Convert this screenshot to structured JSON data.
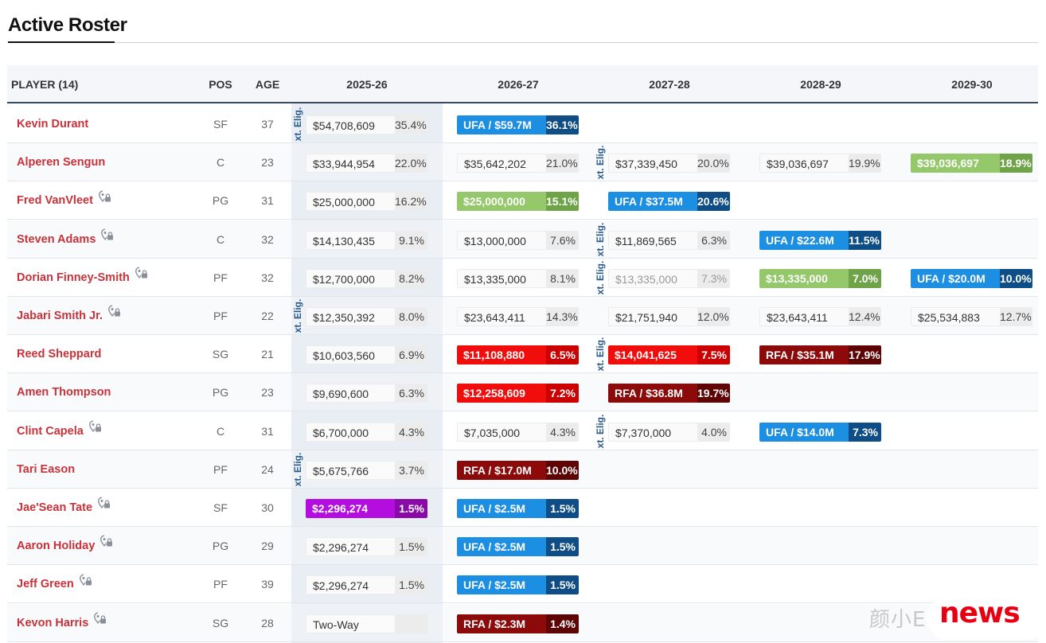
{
  "title": "Active Roster",
  "headers": {
    "player": "PLAYER (14)",
    "pos": "POS",
    "age": "AGE",
    "seasons": [
      "2025-26",
      "2026-27",
      "2027-28",
      "2028-29",
      "2029-30"
    ]
  },
  "ext_label": "xt. Elig.",
  "colors": {
    "player_name": "#c8323a",
    "ufa": "#1d8fe2",
    "player_option": "#94c86a",
    "team_option": "#f20d0d",
    "rfa": "#8c0a0a",
    "non_guaranteed": "#b40ddf"
  },
  "rows": [
    {
      "name": "Kevin Durant",
      "lock": false,
      "pos": "SF",
      "age": "37",
      "cells": [
        {
          "amount": "$54,708,609",
          "pct": "35.4%",
          "style": "plain"
        },
        {
          "amount": "UFA / $59.7M",
          "pct": "36.1%",
          "style": "blue"
        },
        null,
        null,
        null
      ]
    },
    {
      "name": "Alperen Sengun",
      "lock": false,
      "pos": "C",
      "age": "23",
      "cells": [
        {
          "amount": "$33,944,954",
          "pct": "22.0%",
          "style": "plain"
        },
        {
          "amount": "$35,642,202",
          "pct": "21.0%",
          "style": "plain"
        },
        {
          "amount": "$37,339,450",
          "pct": "20.0%",
          "style": "plain"
        },
        {
          "amount": "$39,036,697",
          "pct": "19.9%",
          "style": "plain"
        },
        {
          "amount": "$39,036,697",
          "pct": "18.9%",
          "style": "green"
        }
      ]
    },
    {
      "name": "Fred VanVleet",
      "lock": true,
      "pos": "PG",
      "age": "31",
      "cells": [
        {
          "amount": "$25,000,000",
          "pct": "16.2%",
          "style": "plain"
        },
        {
          "amount": "$25,000,000",
          "pct": "15.1%",
          "style": "green"
        },
        {
          "amount": "UFA / $37.5M",
          "pct": "20.6%",
          "style": "blue"
        },
        null,
        null
      ]
    },
    {
      "name": "Steven Adams",
      "lock": true,
      "pos": "C",
      "age": "32",
      "cells": [
        {
          "amount": "$14,130,435",
          "pct": "9.1%",
          "style": "plain"
        },
        {
          "amount": "$13,000,000",
          "pct": "7.6%",
          "style": "plain"
        },
        {
          "amount": "$11,869,565",
          "pct": "6.3%",
          "style": "plain"
        },
        {
          "amount": "UFA / $22.6M",
          "pct": "11.5%",
          "style": "blue"
        },
        null
      ]
    },
    {
      "name": "Dorian Finney-Smith",
      "lock": true,
      "pos": "PF",
      "age": "32",
      "cells": [
        {
          "amount": "$12,700,000",
          "pct": "8.2%",
          "style": "plain"
        },
        {
          "amount": "$13,335,000",
          "pct": "8.1%",
          "style": "plain"
        },
        {
          "amount": "$13,335,000",
          "pct": "7.3%",
          "style": "faded"
        },
        {
          "amount": "$13,335,000",
          "pct": "7.0%",
          "style": "green"
        },
        {
          "amount": "UFA / $20.0M",
          "pct": "10.0%",
          "style": "blue"
        }
      ]
    },
    {
      "name": "Jabari Smith Jr.",
      "lock": true,
      "pos": "PF",
      "age": "22",
      "cells": [
        {
          "amount": "$12,350,392",
          "pct": "8.0%",
          "style": "plain"
        },
        {
          "amount": "$23,643,411",
          "pct": "14.3%",
          "style": "plain"
        },
        {
          "amount": "$21,751,940",
          "pct": "12.0%",
          "style": "plain"
        },
        {
          "amount": "$23,643,411",
          "pct": "12.4%",
          "style": "plain"
        },
        {
          "amount": "$25,534,883",
          "pct": "12.7%",
          "style": "plain"
        }
      ]
    },
    {
      "name": "Reed Sheppard",
      "lock": false,
      "pos": "SG",
      "age": "21",
      "cells": [
        {
          "amount": "$10,603,560",
          "pct": "6.9%",
          "style": "plain"
        },
        {
          "amount": "$11,108,880",
          "pct": "6.5%",
          "style": "red"
        },
        {
          "amount": "$14,041,625",
          "pct": "7.5%",
          "style": "red"
        },
        {
          "amount": "RFA / $35.1M",
          "pct": "17.9%",
          "style": "darkred"
        },
        null
      ]
    },
    {
      "name": "Amen Thompson",
      "lock": false,
      "pos": "PG",
      "age": "23",
      "cells": [
        {
          "amount": "$9,690,600",
          "pct": "6.3%",
          "style": "plain"
        },
        {
          "amount": "$12,258,609",
          "pct": "7.2%",
          "style": "red"
        },
        {
          "amount": "RFA / $36.8M",
          "pct": "19.7%",
          "style": "darkred"
        },
        null,
        null
      ]
    },
    {
      "name": "Clint Capela",
      "lock": true,
      "pos": "C",
      "age": "31",
      "cells": [
        {
          "amount": "$6,700,000",
          "pct": "4.3%",
          "style": "plain"
        },
        {
          "amount": "$7,035,000",
          "pct": "4.3%",
          "style": "plain"
        },
        {
          "amount": "$7,370,000",
          "pct": "4.0%",
          "style": "plain"
        },
        {
          "amount": "UFA / $14.0M",
          "pct": "7.3%",
          "style": "blue"
        },
        null
      ]
    },
    {
      "name": "Tari Eason",
      "lock": false,
      "pos": "PF",
      "age": "24",
      "cells": [
        {
          "amount": "$5,675,766",
          "pct": "3.7%",
          "style": "plain"
        },
        {
          "amount": "RFA / $17.0M",
          "pct": "10.0%",
          "style": "darkred"
        },
        null,
        null,
        null
      ]
    },
    {
      "name": "Jae'Sean Tate",
      "lock": true,
      "pos": "SF",
      "age": "30",
      "cells": [
        {
          "amount": "$2,296,274",
          "pct": "1.5%",
          "style": "purple"
        },
        {
          "amount": "UFA / $2.5M",
          "pct": "1.5%",
          "style": "blue"
        },
        null,
        null,
        null
      ]
    },
    {
      "name": "Aaron Holiday",
      "lock": true,
      "pos": "PG",
      "age": "29",
      "cells": [
        {
          "amount": "$2,296,274",
          "pct": "1.5%",
          "style": "plain"
        },
        {
          "amount": "UFA / $2.5M",
          "pct": "1.5%",
          "style": "blue"
        },
        null,
        null,
        null
      ]
    },
    {
      "name": "Jeff Green",
      "lock": true,
      "pos": "PF",
      "age": "39",
      "cells": [
        {
          "amount": "$2,296,274",
          "pct": "1.5%",
          "style": "plain"
        },
        {
          "amount": "UFA / $2.5M",
          "pct": "1.5%",
          "style": "blue"
        },
        null,
        null,
        null
      ]
    },
    {
      "name": "Kevon Harris",
      "lock": true,
      "pos": "SG",
      "age": "28",
      "cells": [
        {
          "amount": "Two-Way",
          "pct": "",
          "style": "plain"
        },
        {
          "amount": "RFA / $2.3M",
          "pct": "1.4%",
          "style": "darkred"
        },
        null,
        null,
        null
      ]
    }
  ],
  "ext_markers": [
    {
      "row": 0,
      "season": 0
    },
    {
      "row": 1,
      "season": 2
    },
    {
      "row": 3,
      "season": 2
    },
    {
      "row": 4,
      "season": 2
    },
    {
      "row": 5,
      "season": 0
    },
    {
      "row": 6,
      "season": 2
    },
    {
      "row": 8,
      "season": 2
    },
    {
      "row": 9,
      "season": 0
    }
  ],
  "watermark": {
    "cn": "颜小E",
    "word": "news"
  }
}
